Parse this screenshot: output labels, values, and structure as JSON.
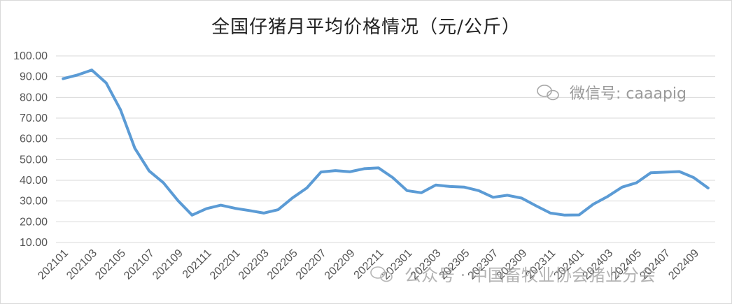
{
  "chart_data": {
    "type": "line",
    "title": "全国仔猪月平均价格情况（元/公斤）",
    "xlabel": "",
    "ylabel": "",
    "ylim": [
      10,
      100
    ],
    "yticks": [
      "10.00",
      "20.00",
      "30.00",
      "40.00",
      "50.00",
      "60.00",
      "70.00",
      "80.00",
      "90.00",
      "100.00"
    ],
    "grid": true,
    "legend": "none",
    "line_color": "#5b9bd5",
    "x": [
      "202101",
      "202102",
      "202103",
      "202104",
      "202105",
      "202106",
      "202107",
      "202108",
      "202109",
      "202110",
      "202111",
      "202112",
      "202201",
      "202202",
      "202203",
      "202204",
      "202205",
      "202206",
      "202207",
      "202208",
      "202209",
      "202210",
      "202211",
      "202212",
      "202301",
      "202302",
      "202303",
      "202304",
      "202305",
      "202306",
      "202307",
      "202308",
      "202309",
      "202310",
      "202311",
      "202312",
      "202401",
      "202402",
      "202403",
      "202404",
      "202405",
      "202406",
      "202407",
      "202408",
      "202409",
      "202410"
    ],
    "xtick_labels": [
      "202101",
      "202103",
      "202105",
      "202107",
      "202109",
      "202111",
      "202201",
      "202203",
      "202205",
      "202207",
      "202209",
      "202211",
      "202301",
      "202303",
      "202305",
      "202307",
      "202309",
      "202311",
      "202401",
      "202403",
      "202405",
      "202407",
      "202409"
    ],
    "series": [
      {
        "values": [
          89.0,
          90.8,
          93.2,
          87.0,
          74.0,
          55.5,
          44.5,
          38.8,
          30.3,
          23.2,
          26.3,
          28.0,
          26.5,
          25.4,
          24.2,
          25.8,
          31.5,
          36.3,
          44.0,
          44.7,
          44.1,
          45.6,
          46.0,
          41.3,
          35.0,
          34.0,
          37.7,
          37.0,
          36.7,
          35.0,
          31.8,
          32.8,
          31.4,
          27.7,
          24.2,
          23.2,
          23.3,
          28.5,
          32.2,
          36.7,
          38.8,
          43.6,
          43.9,
          44.2,
          41.3,
          36.3
        ]
      }
    ]
  },
  "watermark_top": {
    "icon": "wechat-icon",
    "text": "微信号: caaapig"
  },
  "watermark_bottom": {
    "icon": "wechat-icon",
    "text": "公众号 · 中国畜牧业协会猪业分会"
  }
}
